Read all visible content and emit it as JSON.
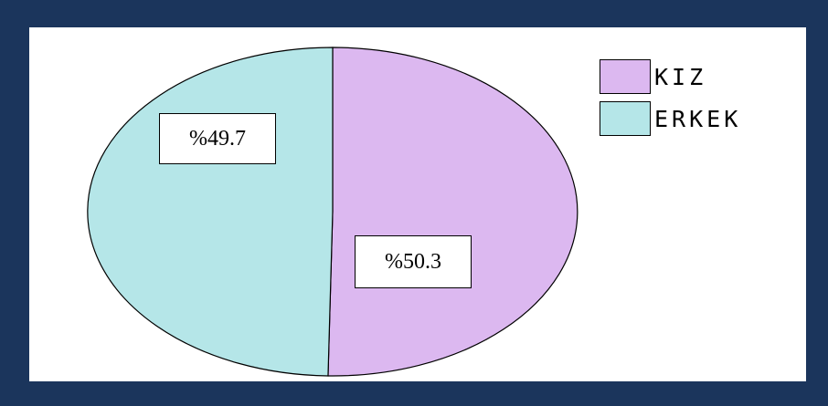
{
  "chart_data": {
    "type": "pie",
    "series": [
      {
        "name": "KIZ",
        "value": 50.3,
        "label": "%50.3",
        "color": "#dcb8f0"
      },
      {
        "name": "ERKEK",
        "value": 49.7,
        "label": "%49.7",
        "color": "#b5e6e8"
      }
    ],
    "legend": {
      "placement": "top-right",
      "entries": [
        "KIZ",
        "ERKEK"
      ]
    },
    "title": ""
  },
  "colors": {
    "frame": "#1b355c",
    "background": "#ffffff"
  }
}
